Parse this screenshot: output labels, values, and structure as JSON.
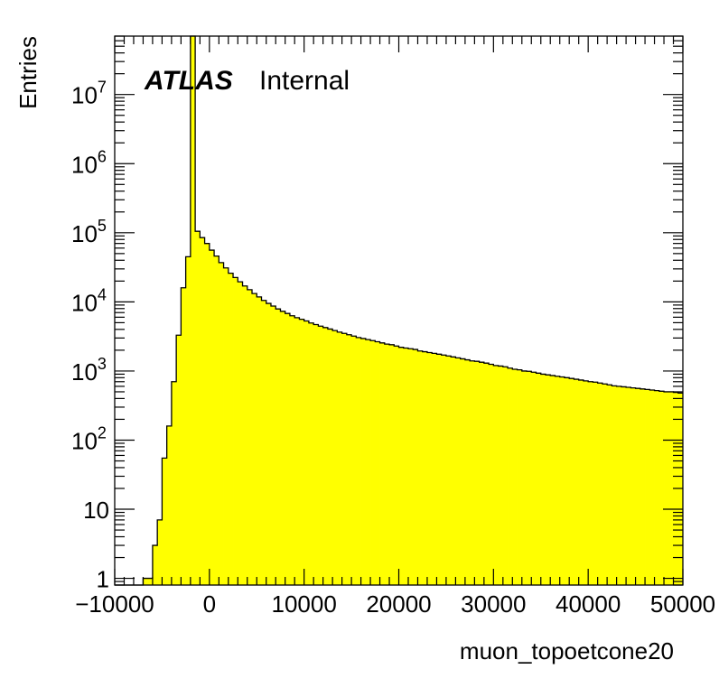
{
  "chart_data": {
    "type": "bar",
    "histogram": true,
    "xlabel": "muon_topoetcone20",
    "ylabel": "Entries",
    "label_bold": "ATLAS",
    "label_normal": "Internal",
    "x_scale": "linear",
    "y_scale": "log",
    "xlim": [
      -10000,
      50000
    ],
    "ylim": [
      0.8,
      70000000
    ],
    "x_ticks": [
      {
        "value": -10000,
        "label": "−10000"
      },
      {
        "value": 0,
        "label": "0"
      },
      {
        "value": 10000,
        "label": "10000"
      },
      {
        "value": 20000,
        "label": "20000"
      },
      {
        "value": 30000,
        "label": "30000"
      },
      {
        "value": 40000,
        "label": "40000"
      },
      {
        "value": 50000,
        "label": "50000"
      }
    ],
    "y_ticks": [
      {
        "value": 1,
        "base": "1",
        "exp": ""
      },
      {
        "value": 10,
        "base": "10",
        "exp": ""
      },
      {
        "value": 100,
        "base": "10",
        "exp": "2"
      },
      {
        "value": 1000,
        "base": "10",
        "exp": "3"
      },
      {
        "value": 10000,
        "base": "10",
        "exp": "4"
      },
      {
        "value": 100000,
        "base": "10",
        "exp": "5"
      },
      {
        "value": 1000000,
        "base": "10",
        "exp": "6"
      },
      {
        "value": 10000000,
        "base": "10",
        "exp": "7"
      }
    ],
    "fill_color": "#ffff00",
    "line_color": "#000000",
    "bin_edges_start": -10000,
    "bin_width": 500,
    "values": [
      0,
      0,
      0,
      0,
      0,
      0,
      1,
      1,
      3,
      7,
      55,
      160,
      700,
      3300,
      16000,
      45000,
      70000000,
      105000,
      85000,
      70000,
      56000,
      46000,
      37000,
      31000,
      26000,
      22500,
      19500,
      17000,
      15000,
      13200,
      11800,
      10500,
      9500,
      8700,
      7900,
      7300,
      6800,
      6300,
      5900,
      5600,
      5300,
      4950,
      4700,
      4450,
      4250,
      4050,
      3850,
      3650,
      3500,
      3350,
      3200,
      3050,
      2950,
      2850,
      2750,
      2650,
      2550,
      2450,
      2400,
      2300,
      2200,
      2150,
      2100,
      2050,
      1950,
      1900,
      1850,
      1800,
      1750,
      1700,
      1650,
      1600,
      1550,
      1500,
      1450,
      1400,
      1380,
      1340,
      1300,
      1250,
      1200,
      1180,
      1150,
      1100,
      1060,
      1040,
      1000,
      990,
      960,
      930,
      900,
      880,
      860,
      840,
      820,
      800,
      780,
      760,
      740,
      720,
      700,
      690,
      670,
      650,
      630,
      610,
      600,
      590,
      580,
      570,
      560,
      550,
      540,
      530,
      520,
      510,
      500,
      500,
      490,
      480
    ]
  }
}
